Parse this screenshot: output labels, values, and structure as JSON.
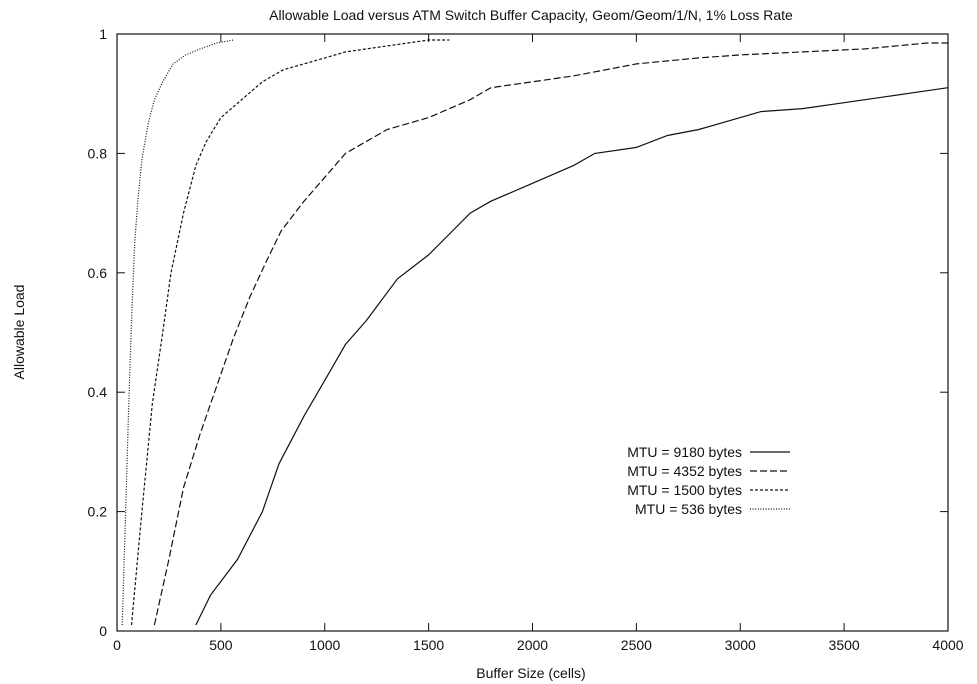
{
  "chart_data": {
    "type": "line",
    "title": "Allowable Load versus ATM Switch Buffer Capacity, Geom/Geom/1/N, 1% Loss Rate",
    "xlabel": "Buffer Size (cells)",
    "ylabel": "Allowable Load",
    "xlim": [
      0,
      4000
    ],
    "ylim": [
      0,
      1
    ],
    "xticks": [
      0,
      500,
      1000,
      1500,
      2000,
      2500,
      3000,
      3500,
      4000
    ],
    "yticks": [
      0,
      0.2,
      0.4,
      0.6,
      0.8,
      1
    ],
    "xtick_labels": [
      "0",
      "500",
      "1000",
      "1500",
      "2000",
      "2500",
      "3000",
      "3500",
      "4000"
    ],
    "ytick_labels": [
      "0",
      "0.2",
      "0.4",
      "0.6",
      "0.8",
      "1"
    ],
    "grid": false,
    "legend_position": "center-right",
    "series": [
      {
        "name": "MTU = 9180 bytes",
        "dash": "solid",
        "x": [
          380,
          450,
          580,
          700,
          780,
          900,
          1000,
          1100,
          1200,
          1350,
          1500,
          1700,
          1800,
          2000,
          2200,
          2300,
          2500,
          2650,
          2800,
          2900,
          3000,
          3100,
          3300,
          3500,
          3700,
          3900,
          4000
        ],
        "y": [
          0.01,
          0.06,
          0.12,
          0.2,
          0.28,
          0.36,
          0.42,
          0.48,
          0.52,
          0.59,
          0.63,
          0.7,
          0.72,
          0.75,
          0.78,
          0.8,
          0.81,
          0.83,
          0.84,
          0.85,
          0.86,
          0.87,
          0.875,
          0.885,
          0.895,
          0.905,
          0.91
        ]
      },
      {
        "name": "MTU = 4352 bytes",
        "dash": "long-dash",
        "x": [
          180,
          250,
          320,
          400,
          480,
          560,
          640,
          720,
          790,
          900,
          1000,
          1100,
          1300,
          1500,
          1700,
          1800,
          2000,
          2200,
          2500,
          2800,
          3000,
          3300,
          3600,
          3900,
          4000
        ],
        "y": [
          0.01,
          0.12,
          0.24,
          0.33,
          0.41,
          0.49,
          0.56,
          0.62,
          0.67,
          0.72,
          0.76,
          0.8,
          0.84,
          0.86,
          0.89,
          0.91,
          0.92,
          0.93,
          0.95,
          0.96,
          0.965,
          0.97,
          0.975,
          0.985,
          0.985
        ]
      },
      {
        "name": "MTU = 1500 bytes",
        "dash": "short-dash",
        "x": [
          70,
          120,
          170,
          220,
          260,
          320,
          380,
          430,
          500,
          600,
          700,
          800,
          900,
          1000,
          1100,
          1200,
          1400,
          1500,
          1600
        ],
        "y": [
          0.01,
          0.2,
          0.38,
          0.5,
          0.6,
          0.7,
          0.78,
          0.82,
          0.86,
          0.89,
          0.92,
          0.94,
          0.95,
          0.96,
          0.97,
          0.975,
          0.985,
          0.99,
          0.99
        ]
      },
      {
        "name": "MTU = 536 bytes",
        "dash": "dotted",
        "x": [
          25,
          40,
          55,
          70,
          85,
          100,
          120,
          150,
          180,
          220,
          270,
          330,
          400,
          480,
          560
        ],
        "y": [
          0.01,
          0.18,
          0.36,
          0.52,
          0.65,
          0.72,
          0.79,
          0.85,
          0.89,
          0.92,
          0.95,
          0.965,
          0.975,
          0.985,
          0.99
        ]
      }
    ]
  }
}
